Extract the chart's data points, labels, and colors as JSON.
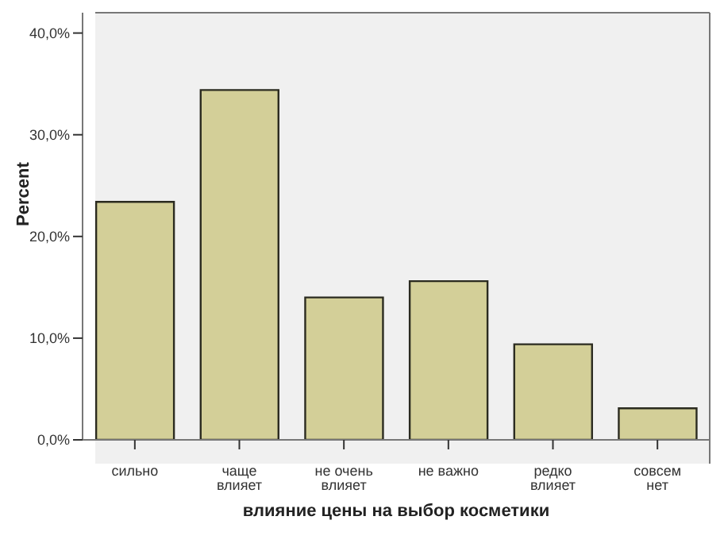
{
  "chart_data": {
    "type": "bar",
    "xlabel": "влияние цены на выбор косметики",
    "ylabel": "Percent",
    "categories": [
      "сильно",
      "чаще влияет",
      "не очень влияет",
      "не важно",
      "редко влияет",
      "совсем нет"
    ],
    "values": [
      23.4,
      34.4,
      14.0,
      15.6,
      9.4,
      3.1
    ],
    "color": "#d3cf98",
    "ylim": [
      0,
      42
    ],
    "yticks": [
      {
        "value": 0,
        "label": "0,0%"
      },
      {
        "value": 10,
        "label": "10,0%"
      },
      {
        "value": 20,
        "label": "20,0%"
      },
      {
        "value": 30,
        "label": "30,0%"
      },
      {
        "value": 40,
        "label": "40,0%"
      }
    ],
    "grid": false
  }
}
